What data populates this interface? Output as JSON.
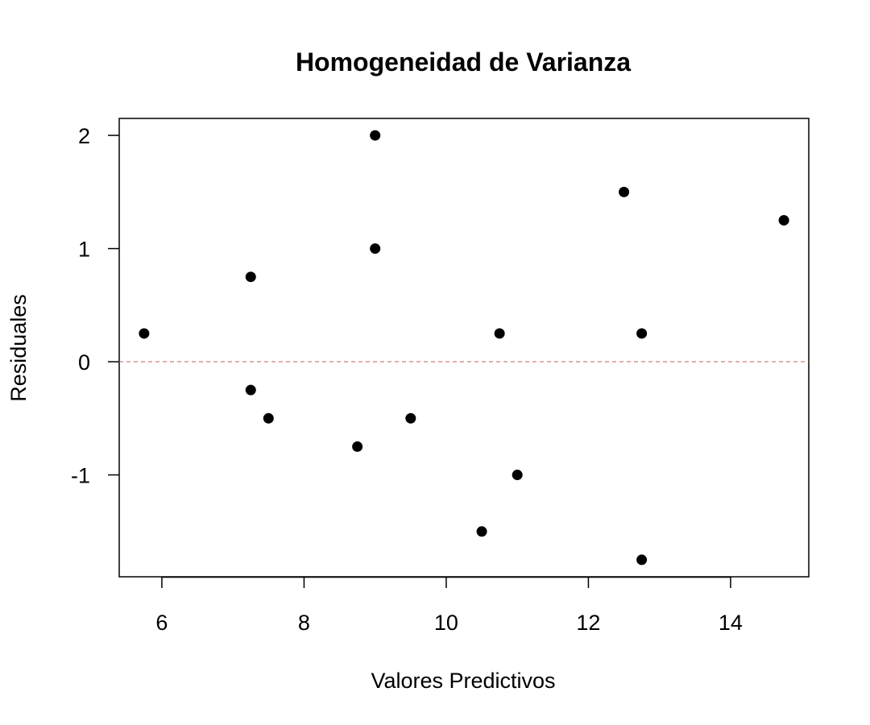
{
  "chart_data": {
    "type": "scatter",
    "title": "Homogeneidad de Varianza",
    "xlabel": "Valores Predictivos",
    "ylabel": "Residuales",
    "xlim": [
      5.4,
      15.1
    ],
    "ylim": [
      -1.9,
      2.15
    ],
    "x_ticks": [
      6,
      8,
      10,
      12,
      14
    ],
    "y_ticks": [
      -1,
      0,
      1,
      2
    ],
    "x_tick_labels": [
      "6",
      "8",
      "10",
      "12",
      "14"
    ],
    "y_tick_labels": [
      "-1",
      "0",
      "1",
      "2"
    ],
    "grid": false,
    "reference_line": {
      "y": 0,
      "color": "#cd5c5c",
      "style": "dashed"
    },
    "point_color": "#000000",
    "points": [
      {
        "x": 5.75,
        "y": 0.25
      },
      {
        "x": 7.25,
        "y": 0.75
      },
      {
        "x": 7.25,
        "y": -0.25
      },
      {
        "x": 7.5,
        "y": -0.5
      },
      {
        "x": 8.75,
        "y": -0.75
      },
      {
        "x": 9.0,
        "y": 2.0
      },
      {
        "x": 9.0,
        "y": 1.0
      },
      {
        "x": 9.5,
        "y": -0.5
      },
      {
        "x": 10.5,
        "y": -1.5
      },
      {
        "x": 10.75,
        "y": 0.25
      },
      {
        "x": 11.0,
        "y": -1.0
      },
      {
        "x": 12.5,
        "y": 1.5
      },
      {
        "x": 12.75,
        "y": 0.25
      },
      {
        "x": 12.75,
        "y": -1.75
      },
      {
        "x": 14.75,
        "y": 1.25
      }
    ]
  }
}
